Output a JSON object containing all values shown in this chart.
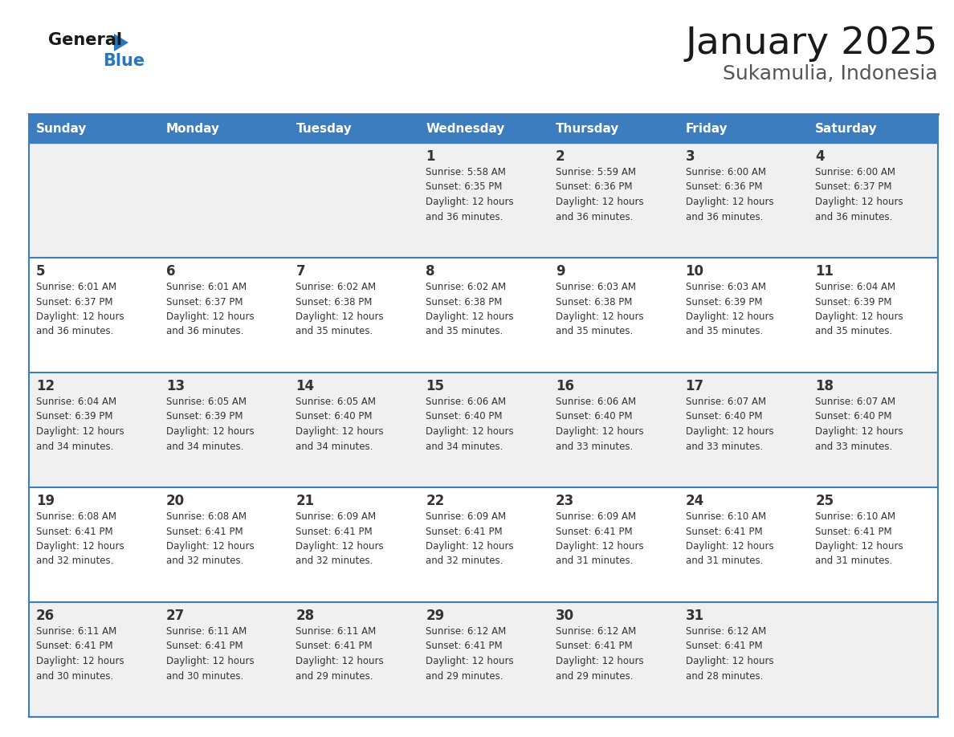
{
  "title": "January 2025",
  "subtitle": "Sukamulia, Indonesia",
  "header_bg": "#3c7dbf",
  "header_text_color": "#ffffff",
  "row_bg_odd": "#f0f0f0",
  "row_bg_even": "#ffffff",
  "border_color": "#3c7dbf",
  "text_color": "#333333",
  "days_of_week": [
    "Sunday",
    "Monday",
    "Tuesday",
    "Wednesday",
    "Thursday",
    "Friday",
    "Saturday"
  ],
  "weeks": [
    [
      {
        "day": "",
        "info": ""
      },
      {
        "day": "",
        "info": ""
      },
      {
        "day": "",
        "info": ""
      },
      {
        "day": "1",
        "info": "Sunrise: 5:58 AM\nSunset: 6:35 PM\nDaylight: 12 hours\nand 36 minutes."
      },
      {
        "day": "2",
        "info": "Sunrise: 5:59 AM\nSunset: 6:36 PM\nDaylight: 12 hours\nand 36 minutes."
      },
      {
        "day": "3",
        "info": "Sunrise: 6:00 AM\nSunset: 6:36 PM\nDaylight: 12 hours\nand 36 minutes."
      },
      {
        "day": "4",
        "info": "Sunrise: 6:00 AM\nSunset: 6:37 PM\nDaylight: 12 hours\nand 36 minutes."
      }
    ],
    [
      {
        "day": "5",
        "info": "Sunrise: 6:01 AM\nSunset: 6:37 PM\nDaylight: 12 hours\nand 36 minutes."
      },
      {
        "day": "6",
        "info": "Sunrise: 6:01 AM\nSunset: 6:37 PM\nDaylight: 12 hours\nand 36 minutes."
      },
      {
        "day": "7",
        "info": "Sunrise: 6:02 AM\nSunset: 6:38 PM\nDaylight: 12 hours\nand 35 minutes."
      },
      {
        "day": "8",
        "info": "Sunrise: 6:02 AM\nSunset: 6:38 PM\nDaylight: 12 hours\nand 35 minutes."
      },
      {
        "day": "9",
        "info": "Sunrise: 6:03 AM\nSunset: 6:38 PM\nDaylight: 12 hours\nand 35 minutes."
      },
      {
        "day": "10",
        "info": "Sunrise: 6:03 AM\nSunset: 6:39 PM\nDaylight: 12 hours\nand 35 minutes."
      },
      {
        "day": "11",
        "info": "Sunrise: 6:04 AM\nSunset: 6:39 PM\nDaylight: 12 hours\nand 35 minutes."
      }
    ],
    [
      {
        "day": "12",
        "info": "Sunrise: 6:04 AM\nSunset: 6:39 PM\nDaylight: 12 hours\nand 34 minutes."
      },
      {
        "day": "13",
        "info": "Sunrise: 6:05 AM\nSunset: 6:39 PM\nDaylight: 12 hours\nand 34 minutes."
      },
      {
        "day": "14",
        "info": "Sunrise: 6:05 AM\nSunset: 6:40 PM\nDaylight: 12 hours\nand 34 minutes."
      },
      {
        "day": "15",
        "info": "Sunrise: 6:06 AM\nSunset: 6:40 PM\nDaylight: 12 hours\nand 34 minutes."
      },
      {
        "day": "16",
        "info": "Sunrise: 6:06 AM\nSunset: 6:40 PM\nDaylight: 12 hours\nand 33 minutes."
      },
      {
        "day": "17",
        "info": "Sunrise: 6:07 AM\nSunset: 6:40 PM\nDaylight: 12 hours\nand 33 minutes."
      },
      {
        "day": "18",
        "info": "Sunrise: 6:07 AM\nSunset: 6:40 PM\nDaylight: 12 hours\nand 33 minutes."
      }
    ],
    [
      {
        "day": "19",
        "info": "Sunrise: 6:08 AM\nSunset: 6:41 PM\nDaylight: 12 hours\nand 32 minutes."
      },
      {
        "day": "20",
        "info": "Sunrise: 6:08 AM\nSunset: 6:41 PM\nDaylight: 12 hours\nand 32 minutes."
      },
      {
        "day": "21",
        "info": "Sunrise: 6:09 AM\nSunset: 6:41 PM\nDaylight: 12 hours\nand 32 minutes."
      },
      {
        "day": "22",
        "info": "Sunrise: 6:09 AM\nSunset: 6:41 PM\nDaylight: 12 hours\nand 32 minutes."
      },
      {
        "day": "23",
        "info": "Sunrise: 6:09 AM\nSunset: 6:41 PM\nDaylight: 12 hours\nand 31 minutes."
      },
      {
        "day": "24",
        "info": "Sunrise: 6:10 AM\nSunset: 6:41 PM\nDaylight: 12 hours\nand 31 minutes."
      },
      {
        "day": "25",
        "info": "Sunrise: 6:10 AM\nSunset: 6:41 PM\nDaylight: 12 hours\nand 31 minutes."
      }
    ],
    [
      {
        "day": "26",
        "info": "Sunrise: 6:11 AM\nSunset: 6:41 PM\nDaylight: 12 hours\nand 30 minutes."
      },
      {
        "day": "27",
        "info": "Sunrise: 6:11 AM\nSunset: 6:41 PM\nDaylight: 12 hours\nand 30 minutes."
      },
      {
        "day": "28",
        "info": "Sunrise: 6:11 AM\nSunset: 6:41 PM\nDaylight: 12 hours\nand 29 minutes."
      },
      {
        "day": "29",
        "info": "Sunrise: 6:12 AM\nSunset: 6:41 PM\nDaylight: 12 hours\nand 29 minutes."
      },
      {
        "day": "30",
        "info": "Sunrise: 6:12 AM\nSunset: 6:41 PM\nDaylight: 12 hours\nand 29 minutes."
      },
      {
        "day": "31",
        "info": "Sunrise: 6:12 AM\nSunset: 6:41 PM\nDaylight: 12 hours\nand 28 minutes."
      },
      {
        "day": "",
        "info": ""
      }
    ]
  ],
  "logo_general_color": "#1a1a1a",
  "logo_blue_color": "#2878c0",
  "logo_triangle_color": "#2878c0",
  "title_fontsize": 34,
  "subtitle_fontsize": 18,
  "header_fontsize": 11,
  "day_num_fontsize": 12,
  "info_fontsize": 8.5
}
